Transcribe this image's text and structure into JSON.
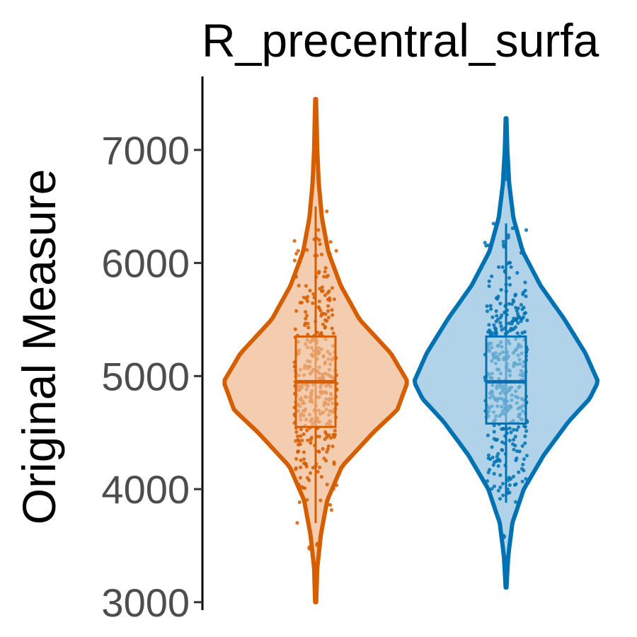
{
  "chart_data": {
    "type": "violin",
    "title": "R_precentral_surfa",
    "ylabel": "Original Measure",
    "xlabel": "",
    "ylim": [
      2930,
      7650
    ],
    "yticks": [
      3000,
      4000,
      5000,
      6000,
      7000
    ],
    "grid": false,
    "legend": "none",
    "groups": [
      {
        "color": "#d55e00",
        "fill": "#f4cdb0",
        "range": [
          3000,
          7450
        ],
        "box": {
          "q1": 4550,
          "median": 4950,
          "q3": 5350,
          "whisker_low": 3700,
          "whisker_high": 6500
        },
        "density": [
          [
            3000,
            0.005
          ],
          [
            3300,
            0.015
          ],
          [
            3600,
            0.05
          ],
          [
            3900,
            0.11
          ],
          [
            4200,
            0.25
          ],
          [
            4500,
            0.55
          ],
          [
            4700,
            0.78
          ],
          [
            4950,
            0.88
          ],
          [
            5200,
            0.72
          ],
          [
            5500,
            0.42
          ],
          [
            5800,
            0.24
          ],
          [
            6100,
            0.12
          ],
          [
            6400,
            0.06
          ],
          [
            6700,
            0.03
          ],
          [
            7000,
            0.015
          ],
          [
            7300,
            0.008
          ],
          [
            7450,
            0.004
          ]
        ],
        "outliers": [
          3480,
          3510,
          7000
        ]
      },
      {
        "color": "#0072b2",
        "fill": "#b0d3e9",
        "range": [
          3130,
          7280
        ],
        "box": {
          "q1": 4580,
          "median": 4950,
          "q3": 5350,
          "whisker_low": 3880,
          "whisker_high": 6350
        },
        "density": [
          [
            3130,
            0.004
          ],
          [
            3400,
            0.02
          ],
          [
            3700,
            0.06
          ],
          [
            4000,
            0.17
          ],
          [
            4300,
            0.36
          ],
          [
            4600,
            0.6
          ],
          [
            4800,
            0.8
          ],
          [
            4950,
            0.88
          ],
          [
            5200,
            0.76
          ],
          [
            5500,
            0.56
          ],
          [
            5800,
            0.33
          ],
          [
            6100,
            0.16
          ],
          [
            6400,
            0.07
          ],
          [
            6700,
            0.03
          ],
          [
            7000,
            0.012
          ],
          [
            7280,
            0.004
          ]
        ],
        "outliers": [
          3580,
          6750,
          6800,
          6850
        ]
      }
    ]
  }
}
